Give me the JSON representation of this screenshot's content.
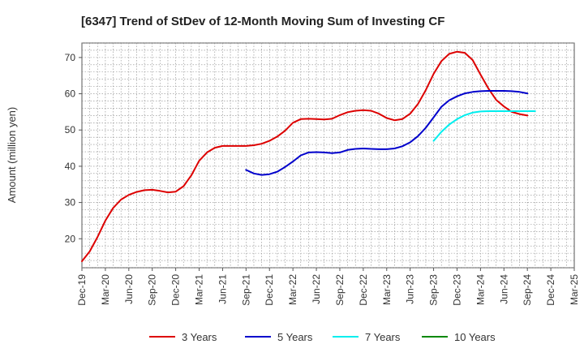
{
  "chart_data": {
    "type": "line",
    "title": "[6347]  Trend of StDev of 12-Month Moving Sum of Investing CF",
    "ylabel": "Amount (million yen)",
    "xlabel": "",
    "ylim": [
      12,
      74
    ],
    "yticks": [
      20,
      30,
      40,
      50,
      60,
      70
    ],
    "grid": true,
    "legend_position": "bottom",
    "x_tick_labels": [
      "Dec-19",
      "Mar-20",
      "Jun-20",
      "Sep-20",
      "Dec-20",
      "Mar-21",
      "Jun-21",
      "Sep-21",
      "Dec-21",
      "Mar-22",
      "Jun-22",
      "Sep-22",
      "Dec-22",
      "Mar-23",
      "Jun-23",
      "Sep-23",
      "Dec-23",
      "Mar-24",
      "Jun-24",
      "Sep-24",
      "Dec-24",
      "Mar-25"
    ],
    "series": [
      {
        "name": "3 Years",
        "color": "#dd0000",
        "start_index": 0,
        "values": [
          13.8,
          16.5,
          20.5,
          25.0,
          28.5,
          30.8,
          32.1,
          32.9,
          33.4,
          33.5,
          33.2,
          32.8,
          33.0,
          34.5,
          37.5,
          41.5,
          43.8,
          45.1,
          45.6,
          45.6,
          45.6,
          45.6,
          45.8,
          46.2,
          47.0,
          48.2,
          49.8,
          52.0,
          53.0,
          53.1,
          53.0,
          52.9,
          53.1,
          54.1,
          54.9,
          55.3,
          55.5,
          55.3,
          54.5,
          53.3,
          52.7,
          53.0,
          54.5,
          57.2,
          61.0,
          65.5,
          69.0,
          71.0,
          71.6,
          71.3,
          69.3,
          65.3,
          61.5,
          58.3,
          56.5,
          55.0,
          54.4,
          54.0
        ]
      },
      {
        "name": "5 Years",
        "color": "#0000cc",
        "start_index": 21,
        "values": [
          39.0,
          38.0,
          37.6,
          37.8,
          38.5,
          39.8,
          41.3,
          43.0,
          43.8,
          43.9,
          43.8,
          43.6,
          43.8,
          44.5,
          44.8,
          44.9,
          44.8,
          44.7,
          44.7,
          44.9,
          45.5,
          46.6,
          48.3,
          50.6,
          53.5,
          56.4,
          58.2,
          59.3,
          60.1,
          60.5,
          60.7,
          60.8,
          60.8,
          60.8,
          60.7,
          60.5,
          60.1
        ]
      },
      {
        "name": "7 Years",
        "color": "#00eeee",
        "start_index": 45,
        "values": [
          47.0,
          49.5,
          51.5,
          53.0,
          54.1,
          54.8,
          55.1,
          55.2,
          55.2,
          55.2,
          55.2,
          55.2,
          55.2,
          55.2
        ]
      },
      {
        "name": "10 Years",
        "color": "#008800",
        "start_index": 0,
        "values": []
      }
    ]
  }
}
